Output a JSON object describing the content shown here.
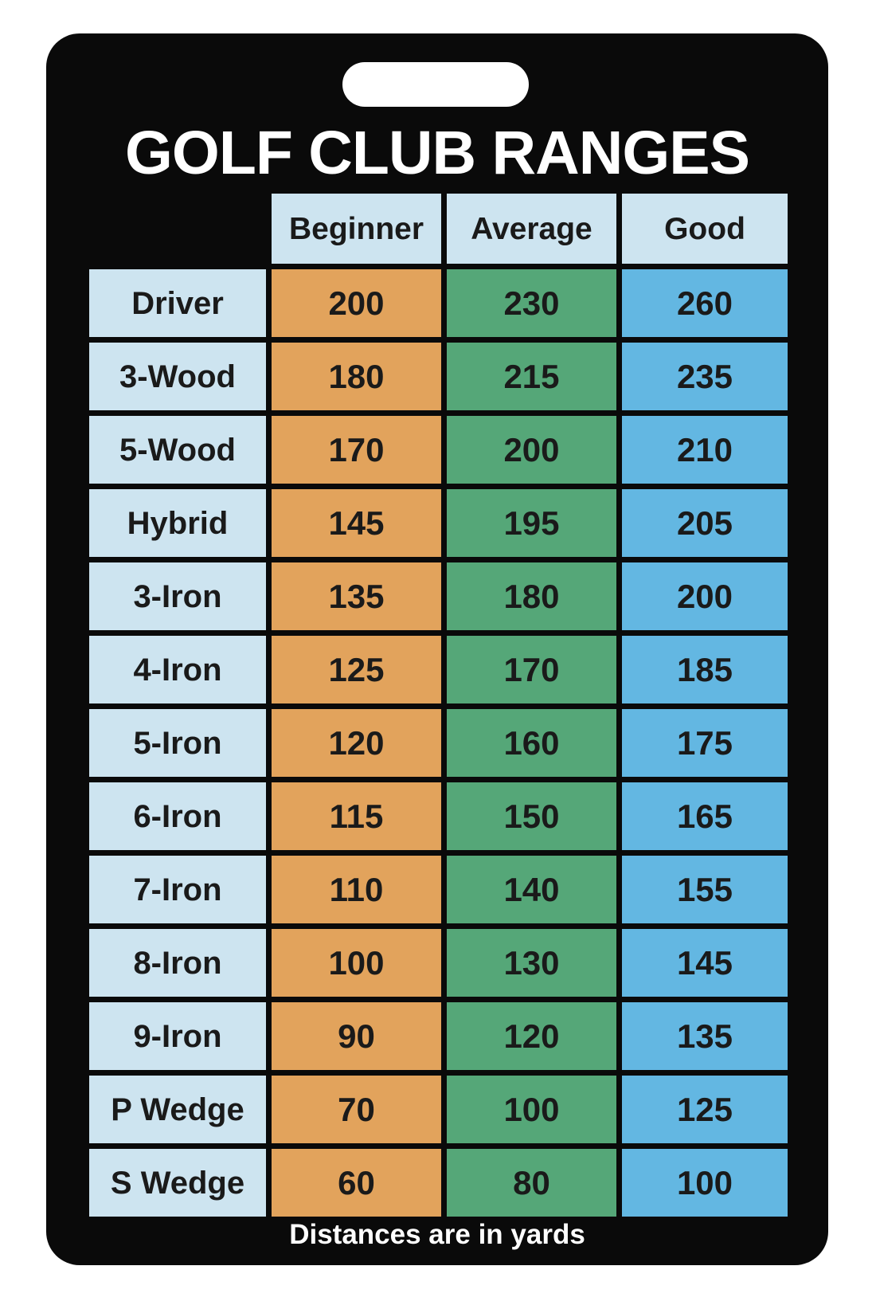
{
  "card": {
    "title": "GOLF CLUB RANGES",
    "footer": "Distances are in yards"
  },
  "table": {
    "headers": [
      "Beginner",
      "Average",
      "Good"
    ],
    "rows": [
      {
        "label": "Driver",
        "beginner": "200",
        "average": "230",
        "good": "260"
      },
      {
        "label": "3-Wood",
        "beginner": "180",
        "average": "215",
        "good": "235"
      },
      {
        "label": "5-Wood",
        "beginner": "170",
        "average": "200",
        "good": "210"
      },
      {
        "label": "Hybrid",
        "beginner": "145",
        "average": "195",
        "good": "205"
      },
      {
        "label": "3-Iron",
        "beginner": "135",
        "average": "180",
        "good": "200"
      },
      {
        "label": "4-Iron",
        "beginner": "125",
        "average": "170",
        "good": "185"
      },
      {
        "label": "5-Iron",
        "beginner": "120",
        "average": "160",
        "good": "175"
      },
      {
        "label": "6-Iron",
        "beginner": "115",
        "average": "150",
        "good": "165"
      },
      {
        "label": "7-Iron",
        "beginner": "110",
        "average": "140",
        "good": "155"
      },
      {
        "label": "8-Iron",
        "beginner": "100",
        "average": "130",
        "good": "145"
      },
      {
        "label": "9-Iron",
        "beginner": "90",
        "average": "120",
        "good": "135"
      },
      {
        "label": "P Wedge",
        "beginner": "70",
        "average": "100",
        "good": "125"
      },
      {
        "label": "S Wedge",
        "beginner": "60",
        "average": "80",
        "good": "100"
      }
    ]
  },
  "colors": {
    "card_bg": "#0a0a0a",
    "cell_light": "#cde4f0",
    "beginner_bg": "#e2a35c",
    "average_bg": "#55a778",
    "good_bg": "#63b7e2",
    "title_color": "#ffffff",
    "text_color": "#1a1a1a"
  },
  "chart_data": {
    "type": "table",
    "title": "GOLF CLUB RANGES",
    "note": "Distances are in yards",
    "units": "yards",
    "columns": [
      "",
      "Beginner",
      "Average",
      "Good"
    ],
    "rows": [
      [
        "Driver",
        200,
        230,
        260
      ],
      [
        "3-Wood",
        180,
        215,
        235
      ],
      [
        "5-Wood",
        170,
        200,
        210
      ],
      [
        "Hybrid",
        145,
        195,
        205
      ],
      [
        "3-Iron",
        135,
        180,
        200
      ],
      [
        "4-Iron",
        125,
        170,
        185
      ],
      [
        "5-Iron",
        120,
        160,
        175
      ],
      [
        "6-Iron",
        115,
        150,
        165
      ],
      [
        "7-Iron",
        110,
        140,
        155
      ],
      [
        "8-Iron",
        100,
        130,
        145
      ],
      [
        "9-Iron",
        90,
        120,
        135
      ],
      [
        "P Wedge",
        70,
        100,
        125
      ],
      [
        "S Wedge",
        60,
        80,
        100
      ]
    ]
  }
}
